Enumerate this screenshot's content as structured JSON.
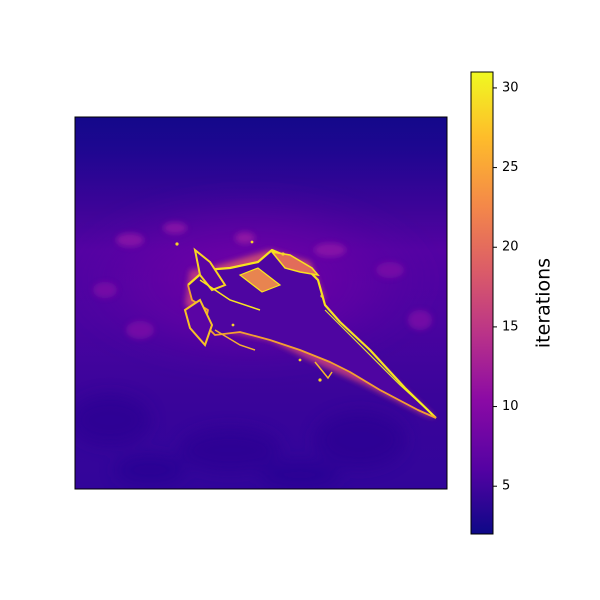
{
  "chart_data": {
    "type": "heatmap",
    "title": "",
    "xlabel": "",
    "ylabel": "",
    "axes_ticks": "none",
    "colormap": "plasma",
    "colormap_stops": [
      "#0d0887",
      "#5402a3",
      "#8b0aa5",
      "#b93289",
      "#db5c68",
      "#f48849",
      "#febd2a",
      "#f0f921"
    ],
    "colorbar": {
      "label": "iterations",
      "range": [
        2,
        31
      ],
      "ticks": [
        5,
        10,
        15,
        20,
        25,
        30
      ],
      "tick_labels": [
        "5",
        "10",
        "15",
        "20",
        "25",
        "30"
      ]
    },
    "field": {
      "background_level": 7,
      "top_band_level": 2,
      "subject": "fighter jet",
      "edge_level": 30,
      "interior_level": 6
    }
  }
}
